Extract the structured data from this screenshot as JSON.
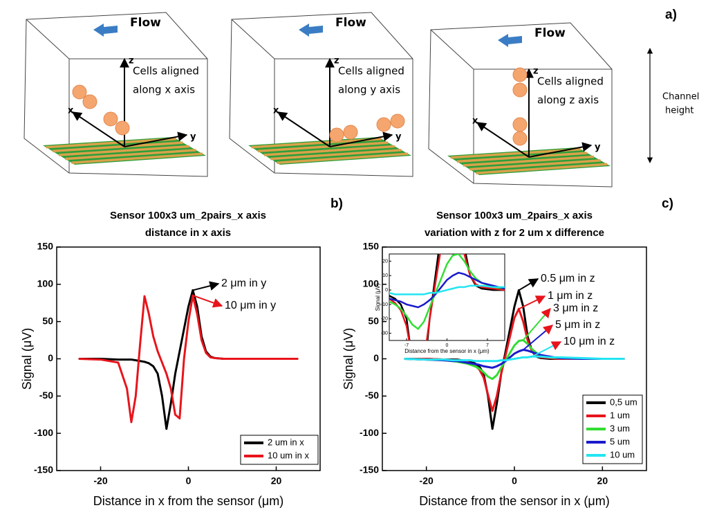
{
  "panel_a": {
    "label": "a)",
    "diagrams": [
      {
        "flow": "Flow",
        "caption": [
          "Cells aligned",
          "along x axis"
        ],
        "axes": [
          "z",
          "x",
          "y"
        ]
      },
      {
        "flow": "Flow",
        "caption": [
          "Cells aligned",
          "along y axis"
        ],
        "axes": [
          "z",
          "x",
          "y"
        ]
      },
      {
        "flow": "Flow",
        "caption": [
          "Cells aligned",
          "along z axis"
        ],
        "axes": [
          "z",
          "x",
          "y"
        ]
      }
    ],
    "channel_height": [
      "Channel",
      "height"
    ]
  },
  "panel_b": {
    "label": "b)"
  },
  "panel_c": {
    "label": "c)"
  },
  "chart_data": [
    {
      "type": "line",
      "title": [
        "Sensor 100x3 um_2pairs_x axis",
        "distance in x axis"
      ],
      "x_label": "Distance in x from the sensor (μm)",
      "y_label": "Signal (μV)",
      "x": [
        -25,
        -20,
        -16,
        -14,
        -13,
        -12,
        -11,
        -10,
        -9,
        -8,
        -7,
        -6,
        -5,
        -4,
        -3,
        -2,
        -1,
        0,
        1,
        2,
        3,
        4,
        5,
        6,
        8,
        10,
        15,
        20,
        25
      ],
      "series": [
        {
          "name": "2 um in x",
          "color": "#000000",
          "values": [
            0,
            0,
            -1,
            -1,
            -1,
            -2,
            -3,
            -4,
            -6,
            -10,
            -20,
            -50,
            -94,
            -60,
            -20,
            10,
            40,
            70,
            92,
            70,
            30,
            10,
            3,
            1,
            0,
            0,
            0,
            0,
            0
          ]
        },
        {
          "name": "10 um in x",
          "color": "#e8141b",
          "values": [
            0,
            -1,
            -5,
            -40,
            -85,
            -50,
            20,
            84,
            60,
            30,
            10,
            -5,
            -20,
            -40,
            -75,
            -80,
            0,
            50,
            85,
            60,
            25,
            8,
            2,
            1,
            0,
            0,
            0,
            0,
            0
          ]
        }
      ],
      "annotations": [
        {
          "text": "2 μm in y",
          "series": 0
        },
        {
          "text": "10 μm in y",
          "series": 1
        }
      ],
      "xlim": [
        -30,
        30
      ],
      "ylim": [
        -150,
        150
      ],
      "xticks": [
        -20,
        0,
        20
      ],
      "yticks": [
        -150,
        -100,
        -50,
        0,
        50,
        100,
        150
      ],
      "legend": "lower right"
    },
    {
      "type": "line",
      "title": [
        "Sensor 100x3 um_2pairs_x axis",
        "variation with z for 2 um x difference"
      ],
      "x_label": "Distance from the sensor in x (μm)",
      "y_label": "Signal (μV)",
      "x": [
        -25,
        -20,
        -16,
        -14,
        -13,
        -12,
        -11,
        -10,
        -9,
        -8,
        -7,
        -6,
        -5,
        -4,
        -3,
        -2,
        -1,
        0,
        1,
        2,
        3,
        4,
        5,
        6,
        8,
        10,
        15,
        20,
        25
      ],
      "series": [
        {
          "name": "0,5 um",
          "color": "#000000",
          "values": [
            0,
            0,
            -1,
            -1,
            -1,
            -2,
            -3,
            -4,
            -6,
            -10,
            -20,
            -50,
            -94,
            -60,
            -20,
            10,
            40,
            70,
            92,
            70,
            30,
            10,
            3,
            1,
            0,
            0,
            0,
            0,
            0
          ]
        },
        {
          "name": "1 um",
          "color": "#e8141b",
          "values": [
            0,
            0,
            -1,
            -2,
            -2,
            -3,
            -4,
            -6,
            -9,
            -14,
            -25,
            -48,
            -70,
            -50,
            -20,
            5,
            30,
            55,
            67,
            50,
            25,
            10,
            4,
            2,
            1,
            0,
            0,
            0,
            0
          ]
        },
        {
          "name": "3 um",
          "color": "#33dd33",
          "values": [
            0,
            -1,
            -2,
            -3,
            -4,
            -5,
            -6,
            -8,
            -10,
            -13,
            -18,
            -24,
            -27,
            -22,
            -12,
            -2,
            8,
            18,
            24,
            25,
            20,
            13,
            8,
            5,
            2,
            1,
            0,
            0,
            0
          ]
        },
        {
          "name": "5 um",
          "color": "#1a1acc",
          "values": [
            0,
            -1,
            -2,
            -3,
            -3,
            -4,
            -5,
            -6,
            -7,
            -8,
            -10,
            -11,
            -12,
            -10,
            -7,
            -3,
            2,
            7,
            10,
            12,
            11,
            9,
            7,
            5,
            3,
            1,
            0,
            0,
            0
          ]
        },
        {
          "name": "10 um",
          "color": "#22e5f2",
          "values": [
            0,
            -1,
            -1,
            -2,
            -2,
            -2,
            -2,
            -2,
            -3,
            -3,
            -3,
            -3,
            -3,
            -3,
            -2,
            -2,
            -1,
            0,
            1,
            2,
            2,
            3,
            3,
            3,
            2,
            2,
            1,
            0,
            0
          ]
        }
      ],
      "annotations": [
        {
          "text": "0.5 μm in z",
          "series": 0
        },
        {
          "text": "1 μm in z",
          "series": 1
        },
        {
          "text": "3 μm in z",
          "series": 2
        },
        {
          "text": "5 μm in z",
          "series": 3
        },
        {
          "text": "10 μm in z",
          "series": 4
        }
      ],
      "xlim": [
        -30,
        30
      ],
      "ylim": [
        -150,
        150
      ],
      "xticks": [
        -20,
        0,
        20
      ],
      "yticks": [
        -150,
        -100,
        -50,
        0,
        50,
        100,
        150
      ],
      "legend": "lower right",
      "inset": {
        "x_label": "Distance from the sensor in x (μm)",
        "y_label": "Signal (μV)",
        "xlim": [
          -10,
          10
        ],
        "ylim": [
          -35,
          25
        ],
        "xticks": [
          -7,
          0,
          7
        ],
        "yticks": [
          -30,
          -20,
          -10,
          0,
          10,
          20
        ]
      }
    }
  ]
}
